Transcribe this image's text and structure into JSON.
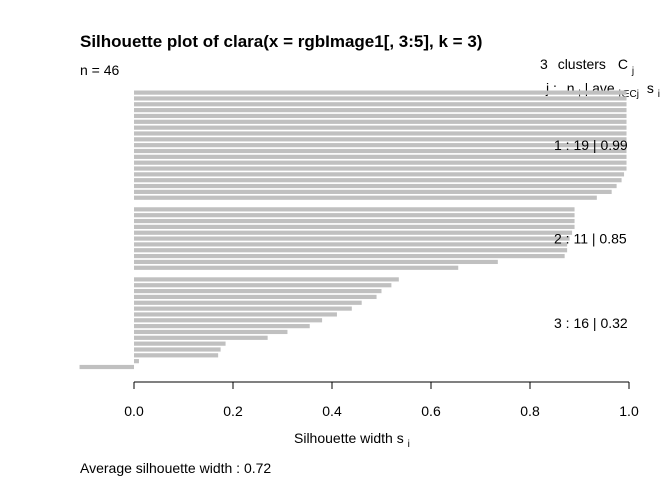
{
  "chart_data": {
    "type": "bar",
    "orientation": "horizontal",
    "title": "Silhouette plot of clara(x = rgbImage1[, 3:5], k = 3)",
    "n_label": "n = 46",
    "legend_header": {
      "count": "3",
      "clusters_word": "clusters",
      "C": "C",
      "C_sub": "j",
      "row2_j": "j :",
      "row2_n": "n",
      "row2_n_sub": "j",
      "row2_ave": "| ave",
      "row2_ave_sub": "i∈Cj",
      "row2_s": "s",
      "row2_s_sub": "i"
    },
    "xlabel": "Silhouette width s",
    "xlabel_sub": "i",
    "xlim": [
      -0.11,
      1.0
    ],
    "ticks": [
      0.0,
      0.2,
      0.4,
      0.6,
      0.8,
      1.0
    ],
    "tick_labels": [
      "0.0",
      "0.2",
      "0.4",
      "0.6",
      "0.8",
      "1.0"
    ],
    "footer": "Average silhouette width :  0.72",
    "bar_color": "#c0c0c0",
    "clusters": [
      {
        "label": "1 :   19  |  0.99",
        "values": [
          0.995,
          0.995,
          0.995,
          0.995,
          0.995,
          0.995,
          0.995,
          0.995,
          0.995,
          0.995,
          0.995,
          0.995,
          0.995,
          0.995,
          0.99,
          0.985,
          0.975,
          0.965,
          0.935
        ]
      },
      {
        "label": "2 :   11  |  0.85",
        "values": [
          0.89,
          0.89,
          0.89,
          0.89,
          0.885,
          0.88,
          0.875,
          0.875,
          0.87,
          0.735,
          0.655
        ]
      },
      {
        "label": "3 :   16  |  0.32",
        "values": [
          0.535,
          0.52,
          0.5,
          0.49,
          0.46,
          0.44,
          0.41,
          0.38,
          0.355,
          0.31,
          0.27,
          0.185,
          0.175,
          0.17,
          0.01,
          -0.11
        ]
      }
    ]
  }
}
